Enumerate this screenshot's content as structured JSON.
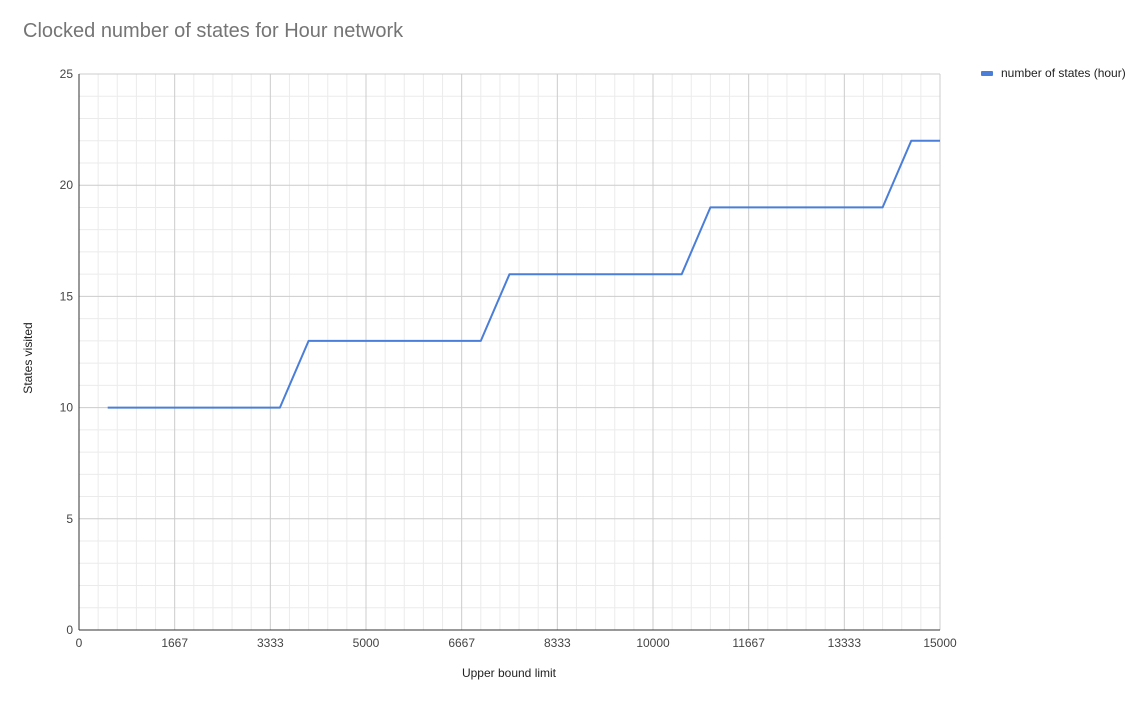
{
  "chart_data": {
    "type": "line",
    "title": "Clocked number of states for Hour network",
    "xlabel": "Upper bound limit",
    "ylabel": "States visited",
    "xlim": [
      0,
      15000
    ],
    "ylim": [
      0,
      25
    ],
    "x_ticks": [
      "0",
      "1667",
      "3333",
      "5000",
      "6667",
      "8333",
      "10000",
      "11667",
      "13333",
      "15000"
    ],
    "y_ticks": [
      "0",
      "5",
      "10",
      "15",
      "20",
      "25"
    ],
    "grid": true,
    "legend_position": "right",
    "series": [
      {
        "name": "number of states (hour)",
        "color": "#4a7ed8",
        "x": [
          500,
          1000,
          1500,
          2000,
          2500,
          3000,
          3500,
          4000,
          4500,
          5000,
          5500,
          6000,
          6500,
          7000,
          7500,
          8000,
          8500,
          9000,
          9500,
          10000,
          10500,
          11000,
          11500,
          12000,
          12500,
          13000,
          13500,
          14000,
          14500,
          15000
        ],
        "y": [
          10,
          10,
          10,
          10,
          10,
          10,
          10,
          13,
          13,
          13,
          13,
          13,
          13,
          13,
          16,
          16,
          16,
          16,
          16,
          16,
          16,
          19,
          19,
          19,
          19,
          19,
          19,
          19,
          22,
          22
        ]
      }
    ]
  }
}
